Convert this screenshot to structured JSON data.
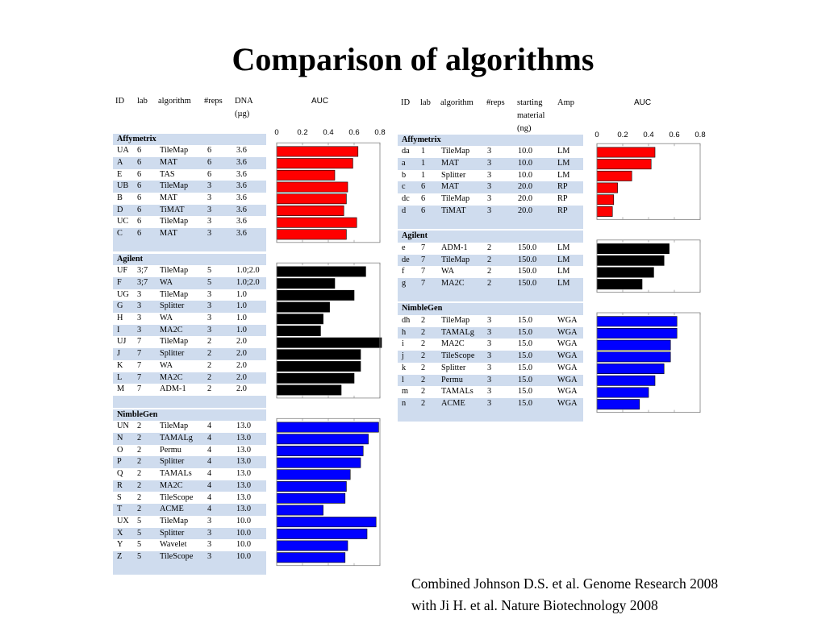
{
  "title": "Comparison of algorithms",
  "citation": {
    "line1": "Combined Johnson D.S. et al. Genome Research 2008",
    "line2": "with Ji H. et al. Nature Biotechnology 2008"
  },
  "left_table": {
    "headers": [
      "ID",
      "lab",
      "algorithm",
      "#reps",
      "DNA\n(µg)"
    ],
    "auc_label": "AUC",
    "groups": [
      {
        "name": "Affymetrix",
        "color": "#ff0000",
        "rows": [
          [
            "UA",
            "6",
            "TileMap",
            "6",
            "3.6"
          ],
          [
            "A",
            "6",
            "MAT",
            "6",
            "3.6"
          ],
          [
            "E",
            "6",
            "TAS",
            "6",
            "3.6"
          ],
          [
            "UB",
            "6",
            "TileMap",
            "3",
            "3.6"
          ],
          [
            "B",
            "6",
            "MAT",
            "3",
            "3.6"
          ],
          [
            "D",
            "6",
            "TiMAT",
            "3",
            "3.6"
          ],
          [
            "UC",
            "6",
            "TileMap",
            "3",
            "3.6"
          ],
          [
            "C",
            "6",
            "MAT",
            "3",
            "3.6"
          ]
        ]
      },
      {
        "name": "Agilent",
        "color": "#000000",
        "rows": [
          [
            "UF",
            "3;7",
            "TileMap",
            "5",
            "1.0;2.0"
          ],
          [
            "F",
            "3;7",
            "WA",
            "5",
            "1.0;2.0"
          ],
          [
            "UG",
            "3",
            "TileMap",
            "3",
            "1.0"
          ],
          [
            "G",
            "3",
            "Splitter",
            "3",
            "1.0"
          ],
          [
            "H",
            "3",
            "WA",
            "3",
            "1.0"
          ],
          [
            "I",
            "3",
            "MA2C",
            "3",
            "1.0"
          ],
          [
            "UJ",
            "7",
            "TileMap",
            "2",
            "2.0"
          ],
          [
            "J",
            "7",
            "Splitter",
            "2",
            "2.0"
          ],
          [
            "K",
            "7",
            "WA",
            "2",
            "2.0"
          ],
          [
            "L",
            "7",
            "MA2C",
            "2",
            "2.0"
          ],
          [
            "M",
            "7",
            "ADM-1",
            "2",
            "2.0"
          ]
        ]
      },
      {
        "name": "NimbleGen",
        "color": "#0000ff",
        "rows": [
          [
            "UN",
            "2",
            "TileMap",
            "4",
            "13.0"
          ],
          [
            "N",
            "2",
            "TAMALg",
            "4",
            "13.0"
          ],
          [
            "O",
            "2",
            "Permu",
            "4",
            "13.0"
          ],
          [
            "P",
            "2",
            "Splitter",
            "4",
            "13.0"
          ],
          [
            "Q",
            "2",
            "TAMALs",
            "4",
            "13.0"
          ],
          [
            "R",
            "2",
            "MA2C",
            "4",
            "13.0"
          ],
          [
            "S",
            "2",
            "TileScope",
            "4",
            "13.0"
          ],
          [
            "T",
            "2",
            "ACME",
            "4",
            "13.0"
          ],
          [
            "UX",
            "5",
            "TileMap",
            "3",
            "10.0"
          ],
          [
            "X",
            "5",
            "Splitter",
            "3",
            "10.0"
          ],
          [
            "Y",
            "5",
            "Wavelet",
            "3",
            "10.0"
          ],
          [
            "Z",
            "5",
            "TileScope",
            "3",
            "10.0"
          ]
        ]
      }
    ]
  },
  "right_table": {
    "headers": [
      "ID",
      "lab",
      "algorithm",
      "#reps",
      "starting\nmaterial\n(ng)",
      "Amp"
    ],
    "auc_label": "AUC",
    "groups": [
      {
        "name": "Affymetrix",
        "color": "#ff0000",
        "rows": [
          [
            "da",
            "1",
            "TileMap",
            "3",
            "10.0",
            "LM"
          ],
          [
            "a",
            "1",
            "MAT",
            "3",
            "10.0",
            "LM"
          ],
          [
            "b",
            "1",
            "Splitter",
            "3",
            "10.0",
            "LM"
          ],
          [
            "c",
            "6",
            "MAT",
            "3",
            "20.0",
            "RP"
          ],
          [
            "dc",
            "6",
            "TileMap",
            "3",
            "20.0",
            "RP"
          ],
          [
            "d",
            "6",
            "TiMAT",
            "3",
            "20.0",
            "RP"
          ]
        ]
      },
      {
        "name": "Agilent",
        "color": "#000000",
        "rows": [
          [
            "e",
            "7",
            "ADM-1",
            "2",
            "150.0",
            "LM"
          ],
          [
            "de",
            "7",
            "TileMap",
            "2",
            "150.0",
            "LM"
          ],
          [
            "f",
            "7",
            "WA",
            "2",
            "150.0",
            "LM"
          ],
          [
            "g",
            "7",
            "MA2C",
            "2",
            "150.0",
            "LM"
          ]
        ]
      },
      {
        "name": "NimbleGen",
        "color": "#0000ff",
        "rows": [
          [
            "dh",
            "2",
            "TileMap",
            "3",
            "15.0",
            "WGA"
          ],
          [
            "h",
            "2",
            "TAMALg",
            "3",
            "15.0",
            "WGA"
          ],
          [
            "i",
            "2",
            "MA2C",
            "3",
            "15.0",
            "WGA"
          ],
          [
            "j",
            "2",
            "TileScope",
            "3",
            "15.0",
            "WGA"
          ],
          [
            "k",
            "2",
            "Splitter",
            "3",
            "15.0",
            "WGA"
          ],
          [
            "l",
            "2",
            "Permu",
            "3",
            "15.0",
            "WGA"
          ],
          [
            "m",
            "2",
            "TAMALs",
            "3",
            "15.0",
            "WGA"
          ],
          [
            "n",
            "2",
            "ACME",
            "3",
            "15.0",
            "WGA"
          ]
        ]
      }
    ]
  },
  "chart_data": [
    {
      "type": "bar",
      "orientation": "horizontal",
      "title": "AUC",
      "xlim": [
        0,
        0.8
      ],
      "xticks": [
        "0",
        "0.2",
        "0.4",
        "0.6",
        "0.8"
      ],
      "series": [
        {
          "name": "Affymetrix",
          "color": "#ff0000",
          "categories": [
            "UA",
            "A",
            "E",
            "UB",
            "B",
            "D",
            "UC",
            "C"
          ],
          "values": [
            0.63,
            0.59,
            0.45,
            0.55,
            0.54,
            0.52,
            0.62,
            0.54
          ]
        },
        {
          "name": "Agilent",
          "color": "#000000",
          "categories": [
            "UF",
            "F",
            "UG",
            "G",
            "H",
            "I",
            "UJ",
            "J",
            "K",
            "L",
            "M"
          ],
          "values": [
            0.69,
            0.45,
            0.6,
            0.41,
            0.36,
            0.34,
            0.82,
            0.65,
            0.65,
            0.6,
            0.5
          ]
        },
        {
          "name": "NimbleGen",
          "color": "#0000ff",
          "categories": [
            "UN",
            "N",
            "O",
            "P",
            "Q",
            "R",
            "S",
            "T",
            "UX",
            "X",
            "Y",
            "Z"
          ],
          "values": [
            0.79,
            0.71,
            0.67,
            0.65,
            0.57,
            0.54,
            0.53,
            0.36,
            0.77,
            0.7,
            0.55,
            0.53
          ]
        }
      ]
    },
    {
      "type": "bar",
      "orientation": "horizontal",
      "title": "AUC",
      "xlim": [
        0,
        0.8
      ],
      "xticks": [
        "0",
        "0.2",
        "0.4",
        "0.6",
        "0.8"
      ],
      "series": [
        {
          "name": "Affymetrix",
          "color": "#ff0000",
          "categories": [
            "da",
            "a",
            "b",
            "c",
            "dc",
            "d"
          ],
          "values": [
            0.45,
            0.42,
            0.27,
            0.16,
            0.13,
            0.12
          ]
        },
        {
          "name": "Agilent",
          "color": "#000000",
          "categories": [
            "e",
            "de",
            "f",
            "g"
          ],
          "values": [
            0.56,
            0.52,
            0.44,
            0.35
          ]
        },
        {
          "name": "NimbleGen",
          "color": "#0000ff",
          "categories": [
            "dh",
            "h",
            "i",
            "j",
            "k",
            "l",
            "m",
            "n"
          ],
          "values": [
            0.62,
            0.62,
            0.57,
            0.57,
            0.52,
            0.45,
            0.4,
            0.33
          ]
        }
      ]
    }
  ]
}
